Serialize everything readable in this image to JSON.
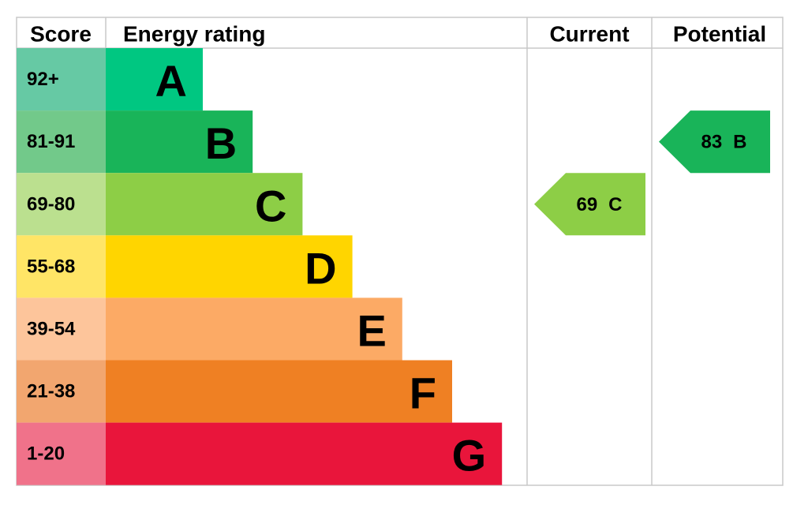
{
  "header": {
    "score": "Score",
    "rating": "Energy rating",
    "current": "Current",
    "potential": "Potential"
  },
  "bands": [
    {
      "score": "92+",
      "letter": "A",
      "color": "#00c781",
      "score_color": "#66c9a4"
    },
    {
      "score": "81-91",
      "letter": "B",
      "color": "#19b459",
      "score_color": "#72c98a"
    },
    {
      "score": "69-80",
      "letter": "C",
      "color": "#8dce46",
      "score_color": "#bbe08f"
    },
    {
      "score": "55-68",
      "letter": "D",
      "color": "#ffd500",
      "score_color": "#ffe566"
    },
    {
      "score": "39-54",
      "letter": "E",
      "color": "#fcaa65",
      "score_color": "#fdc59b"
    },
    {
      "score": "21-38",
      "letter": "F",
      "color": "#ef8023",
      "score_color": "#f2a66f"
    },
    {
      "score": "1-20",
      "letter": "G",
      "color": "#e9153b",
      "score_color": "#f0728a"
    }
  ],
  "current": {
    "value": 69,
    "band": "C"
  },
  "potential": {
    "value": 83,
    "band": "B"
  }
}
